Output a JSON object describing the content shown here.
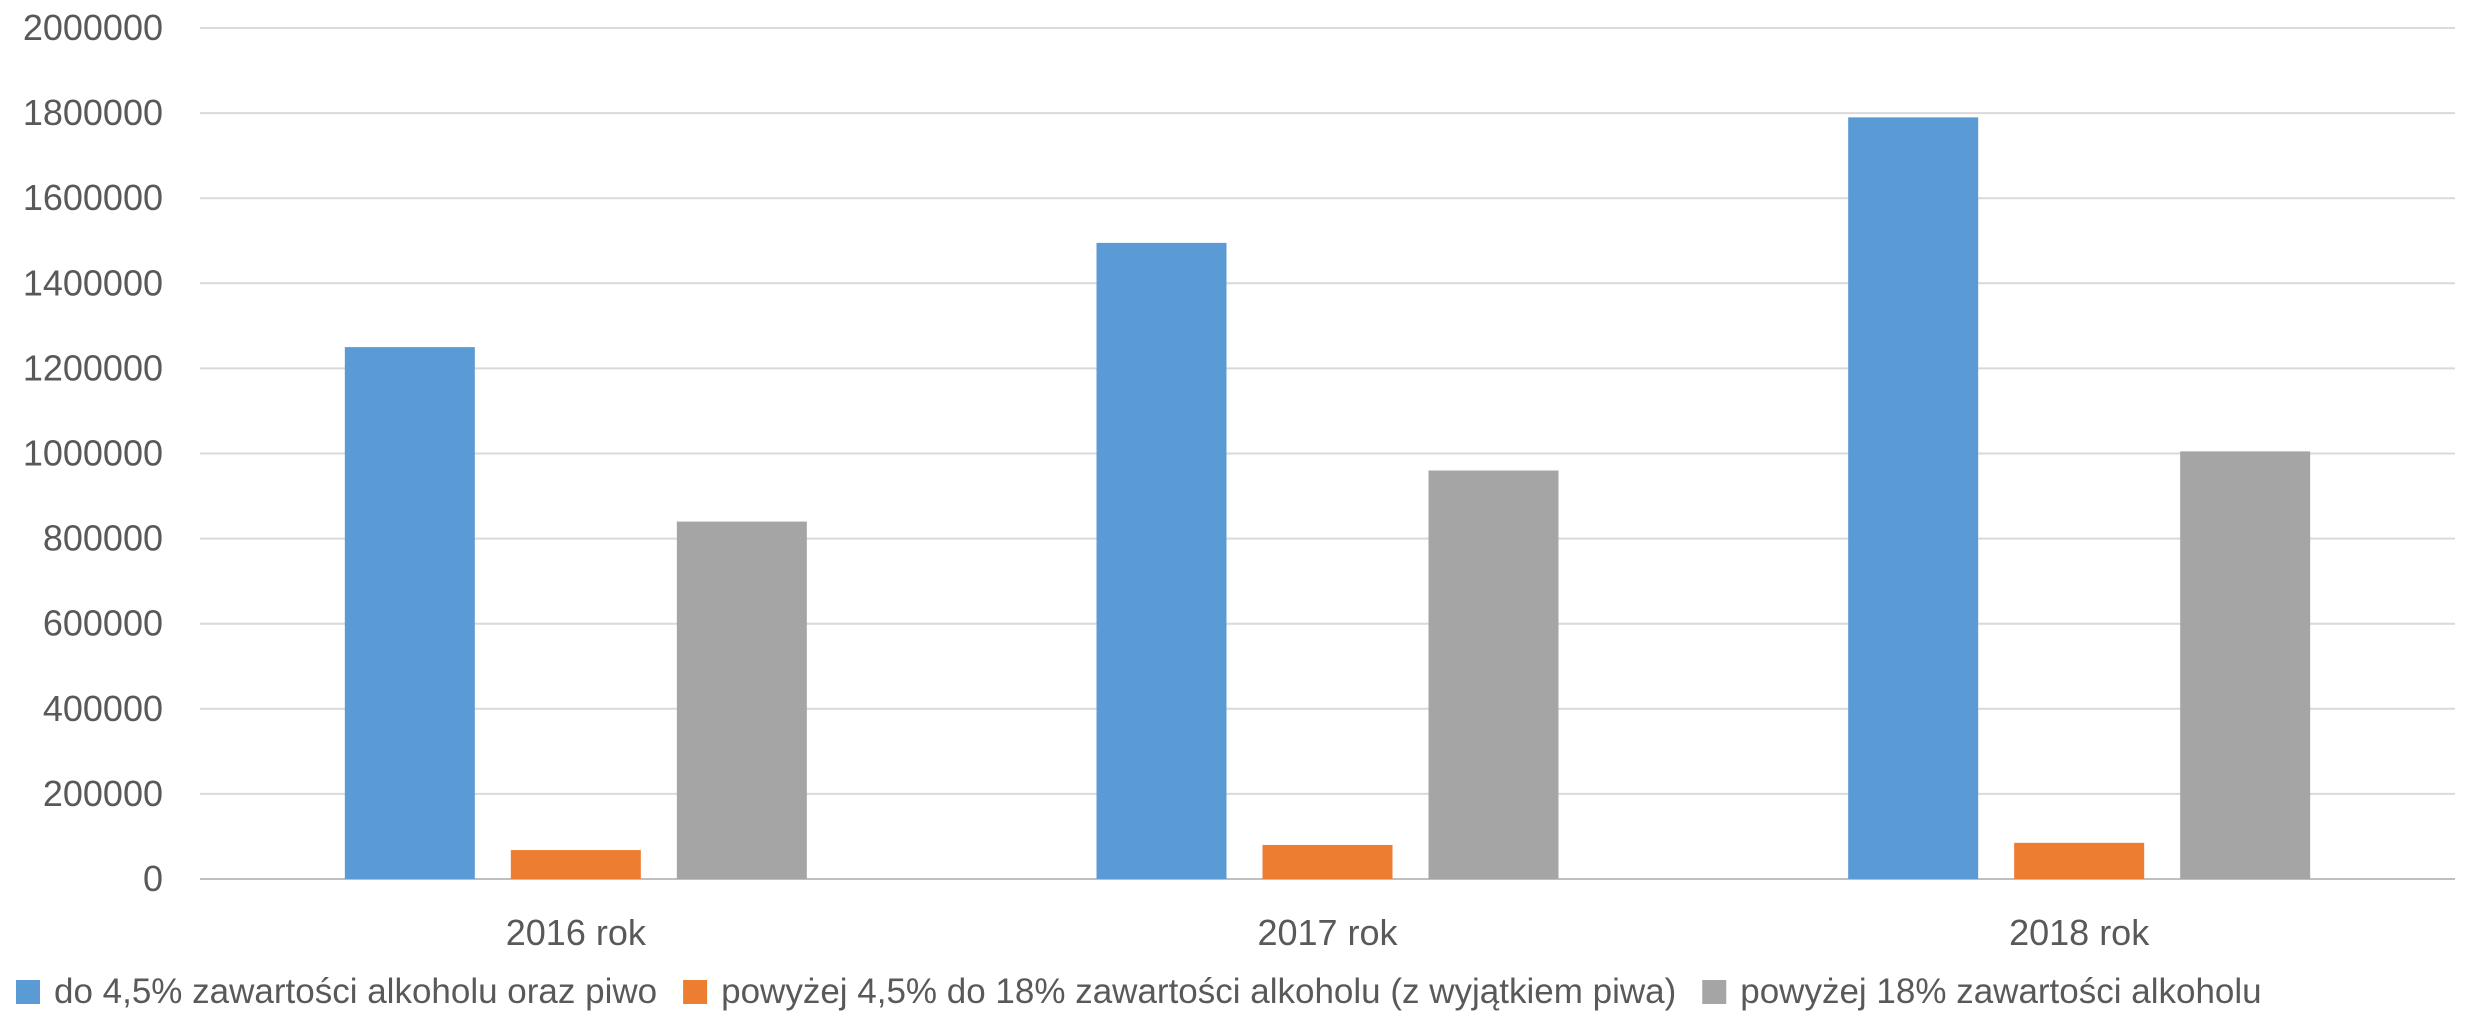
{
  "chart_data": {
    "type": "bar",
    "categories": [
      "2016 rok",
      "2017 rok",
      "2018 rok"
    ],
    "series": [
      {
        "name": "do 4,5% zawartości alkoholu oraz piwo",
        "color": "#5B9BD5",
        "values": [
          1250000,
          1495000,
          1790000
        ]
      },
      {
        "name": "powyżej 4,5% do 18% zawartości alkoholu (z wyjątkiem piwa)",
        "color": "#ED7D31",
        "values": [
          68000,
          80000,
          85000
        ]
      },
      {
        "name": "powyżej 18% zawartości alkoholu",
        "color": "#A5A5A5",
        "values": [
          840000,
          960000,
          1005000
        ]
      }
    ],
    "yticks": [
      "0",
      "200000",
      "400000",
      "600000",
      "800000",
      "1000000",
      "1200000",
      "1400000",
      "1600000",
      "1800000",
      "2000000"
    ],
    "ylim": [
      0,
      2000000
    ],
    "grid": true,
    "legend_position": "bottom"
  }
}
